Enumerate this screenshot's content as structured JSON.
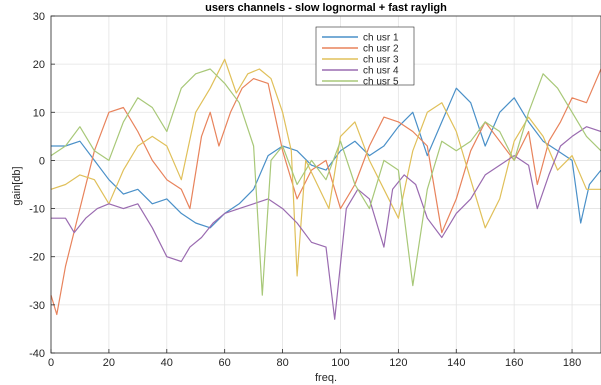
{
  "chart_data": {
    "type": "line",
    "title": "users channels - slow lognormal + fast rayligh",
    "xlabel": "freq.",
    "ylabel": "gain[db]",
    "xlim": [
      0,
      190
    ],
    "ylim": [
      -40,
      30
    ],
    "xticks": [
      0,
      20,
      40,
      60,
      80,
      100,
      120,
      140,
      160,
      180
    ],
    "yticks": [
      -40,
      -30,
      -20,
      -10,
      0,
      10,
      20,
      30
    ],
    "grid": true,
    "legend_position": "top-center",
    "series": [
      {
        "name": "ch usr 1",
        "color": "#4a90c8",
        "x": [
          0,
          5,
          10,
          15,
          20,
          25,
          30,
          35,
          40,
          45,
          50,
          55,
          60,
          65,
          70,
          75,
          80,
          85,
          90,
          95,
          100,
          105,
          110,
          115,
          120,
          125,
          130,
          135,
          140,
          145,
          150,
          155,
          160,
          165,
          170,
          175,
          180,
          183,
          186,
          190
        ],
        "values": [
          3,
          3,
          4,
          0,
          -4,
          -7,
          -6,
          -9,
          -8,
          -11,
          -13,
          -14,
          -11,
          -9,
          -6,
          1,
          3,
          2,
          -1,
          -2,
          2,
          4,
          1,
          3,
          7,
          10,
          1,
          8,
          15,
          12,
          3,
          10,
          13,
          8,
          4,
          2,
          0,
          -13,
          -5,
          -2
        ]
      },
      {
        "name": "ch usr 2",
        "color": "#e8835c",
        "x": [
          0,
          2,
          5,
          10,
          15,
          20,
          25,
          30,
          35,
          40,
          45,
          48,
          52,
          55,
          58,
          62,
          66,
          70,
          75,
          80,
          85,
          90,
          95,
          100,
          105,
          110,
          115,
          120,
          125,
          130,
          135,
          140,
          145,
          150,
          155,
          160,
          165,
          168,
          172,
          176,
          180,
          185,
          190
        ],
        "values": [
          -28,
          -32,
          -22,
          -10,
          2,
          10,
          11,
          6,
          0,
          -4,
          -6,
          -10,
          5,
          10,
          3,
          10,
          15,
          17,
          16,
          2,
          -8,
          -2,
          0,
          -10,
          -5,
          3,
          9,
          8,
          6,
          3,
          -15,
          -8,
          2,
          8,
          4,
          0,
          6,
          -5,
          4,
          8,
          13,
          12,
          19
        ]
      },
      {
        "name": "ch usr 3",
        "color": "#e0c05a",
        "x": [
          0,
          5,
          10,
          15,
          20,
          25,
          30,
          35,
          40,
          45,
          50,
          55,
          60,
          64,
          68,
          72,
          76,
          80,
          83,
          85,
          88,
          92,
          96,
          100,
          105,
          110,
          115,
          120,
          125,
          130,
          135,
          140,
          145,
          150,
          155,
          160,
          165,
          170,
          175,
          180,
          185,
          190
        ],
        "values": [
          -6,
          -5,
          -3,
          -4,
          -9,
          -2,
          3,
          5,
          3,
          -4,
          10,
          15,
          21,
          14,
          18,
          19,
          17,
          10,
          2,
          -24,
          0,
          -5,
          -10,
          5,
          8,
          0,
          -6,
          -12,
          2,
          10,
          12,
          6,
          -4,
          -14,
          -8,
          4,
          9,
          5,
          -2,
          1,
          -6,
          -6
        ]
      },
      {
        "name": "ch usr 4",
        "color": "#9a6bb0",
        "x": [
          0,
          5,
          8,
          12,
          16,
          20,
          25,
          30,
          35,
          40,
          45,
          48,
          52,
          56,
          60,
          65,
          70,
          75,
          80,
          85,
          90,
          95,
          98,
          102,
          106,
          110,
          115,
          118,
          122,
          126,
          130,
          135,
          140,
          145,
          150,
          155,
          160,
          165,
          168,
          172,
          176,
          180,
          185,
          190
        ],
        "values": [
          -12,
          -12,
          -15,
          -12,
          -10,
          -9,
          -10,
          -9,
          -14,
          -20,
          -21,
          -18,
          -16,
          -13,
          -11,
          -10,
          -9,
          -8,
          -10,
          -13,
          -17,
          -18,
          -33,
          -10,
          -6,
          -8,
          -18,
          -6,
          -3,
          -5,
          -12,
          -16,
          -11,
          -8,
          -3,
          -1,
          1,
          -1,
          -10,
          -3,
          3,
          5,
          7,
          6
        ]
      },
      {
        "name": "ch usr 5",
        "color": "#a8c878",
        "x": [
          0,
          5,
          10,
          15,
          20,
          25,
          30,
          35,
          40,
          45,
          50,
          55,
          60,
          65,
          70,
          73,
          76,
          80,
          85,
          90,
          95,
          100,
          105,
          110,
          115,
          120,
          125,
          130,
          135,
          140,
          145,
          150,
          155,
          160,
          165,
          170,
          175,
          180,
          185,
          190
        ],
        "values": [
          1,
          3,
          7,
          2,
          0,
          8,
          13,
          11,
          6,
          15,
          18,
          19,
          16,
          12,
          3,
          -28,
          0,
          3,
          -5,
          0,
          -4,
          4,
          -5,
          -10,
          0,
          -2,
          -26,
          -6,
          4,
          2,
          4,
          8,
          6,
          0,
          10,
          18,
          15,
          10,
          5,
          2
        ]
      }
    ]
  }
}
